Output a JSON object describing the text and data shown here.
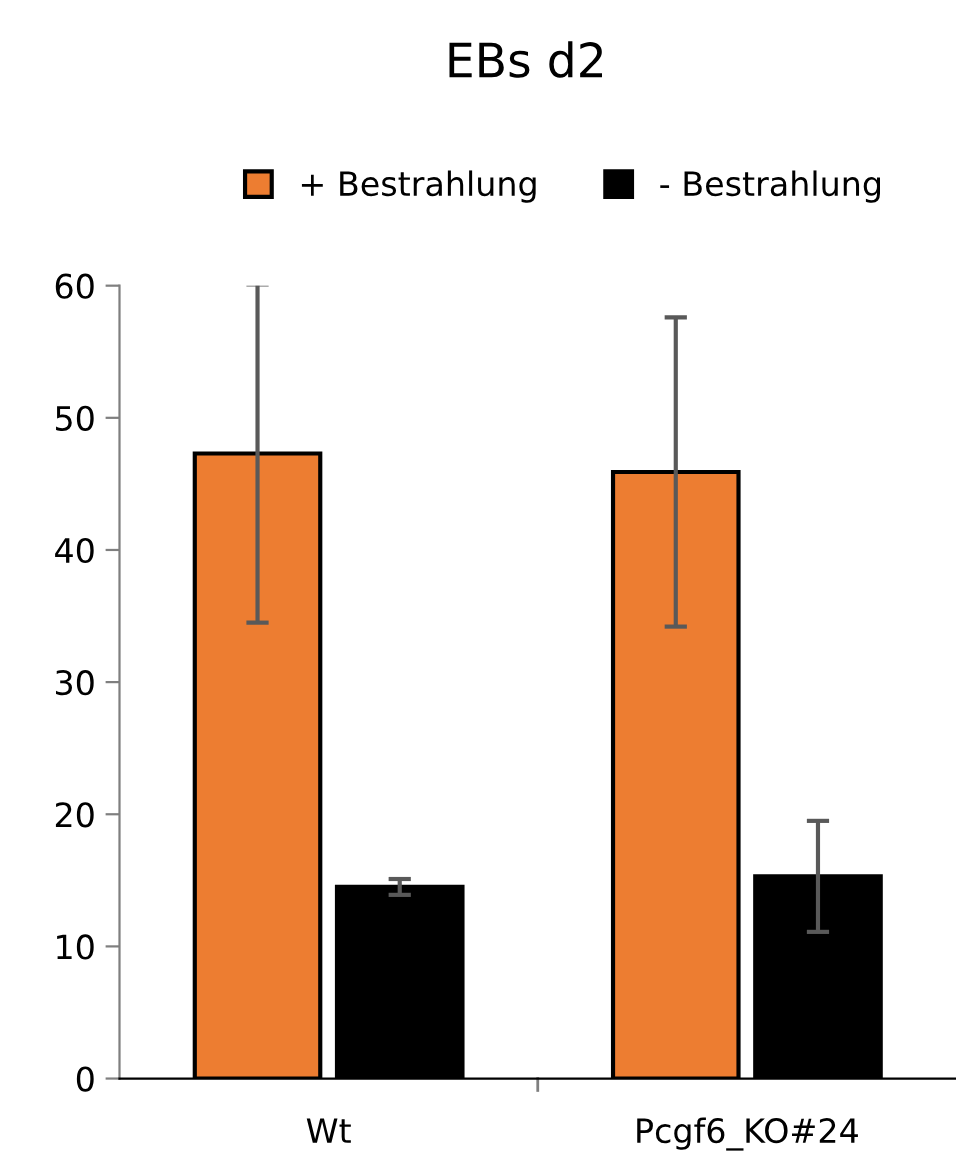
{
  "chart_data": {
    "type": "bar",
    "title": "EBs d2",
    "categories": [
      "Wt",
      "Pcgf6_KO#24"
    ],
    "series": [
      {
        "name": "+ Bestrahlung",
        "color": "#ed7d31",
        "values": [
          47.3,
          45.9
        ],
        "errors": [
          12.8,
          11.7
        ]
      },
      {
        "name": "- Bestrahlung",
        "color": "#000000",
        "values": [
          14.5,
          15.3
        ],
        "errors": [
          0.6,
          4.2
        ]
      }
    ],
    "ylim": [
      0,
      60
    ],
    "yticks": [
      0,
      10,
      20,
      30,
      40,
      50,
      60
    ],
    "grid": false,
    "legend": "top"
  }
}
